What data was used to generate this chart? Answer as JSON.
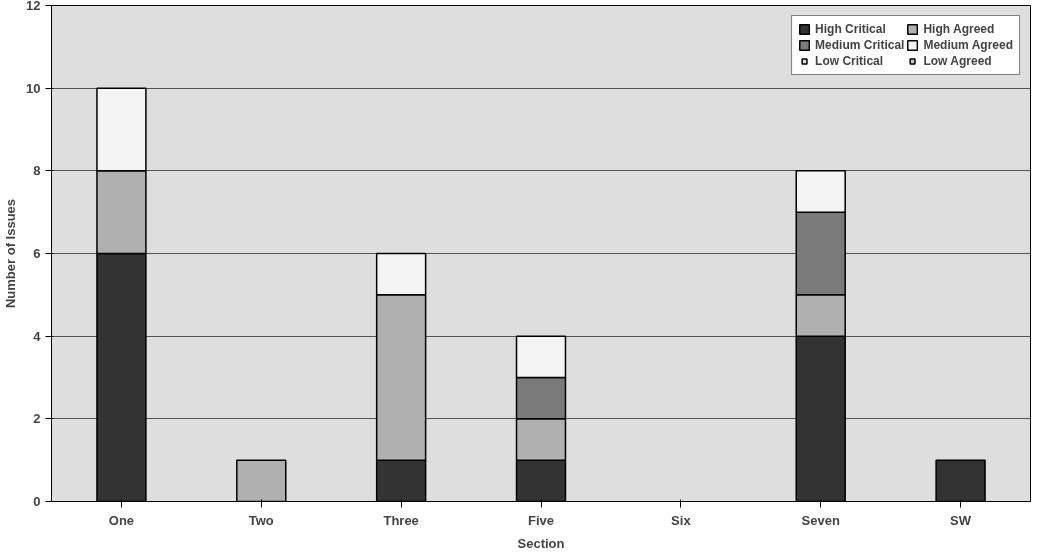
{
  "chart_data": {
    "type": "bar",
    "stacked": true,
    "xlabel": "Section",
    "ylabel": "Number of Issues",
    "categories": [
      "One",
      "Two",
      "Three",
      "Five",
      "Six",
      "Seven",
      "SW"
    ],
    "series": [
      {
        "name": "High Critical",
        "color": "#333333",
        "values": [
          6,
          0,
          1,
          1,
          0,
          4,
          1
        ]
      },
      {
        "name": "High Agreed",
        "color": "#b0b0b0",
        "values": [
          2,
          1,
          4,
          1,
          0,
          1,
          0
        ]
      },
      {
        "name": "Medium Critical",
        "color": "#7a7a7a",
        "values": [
          0,
          0,
          0,
          1,
          0,
          2,
          0
        ]
      },
      {
        "name": "Medium Agreed",
        "color": "#f4f4f4",
        "values": [
          2,
          0,
          1,
          1,
          0,
          1,
          0
        ]
      },
      {
        "name": "Low Critical",
        "color": "#dcdcdc",
        "values": [
          0,
          0,
          0,
          0,
          0,
          0,
          0
        ]
      },
      {
        "name": "Low Agreed",
        "color": "#c8c8c8",
        "values": [
          0,
          0,
          0,
          0,
          0,
          0,
          0
        ]
      }
    ],
    "ylim": [
      0,
      12
    ],
    "yticks": [
      0,
      2,
      4,
      6,
      8,
      10,
      12
    ],
    "grid": "y",
    "legend": "top right"
  }
}
